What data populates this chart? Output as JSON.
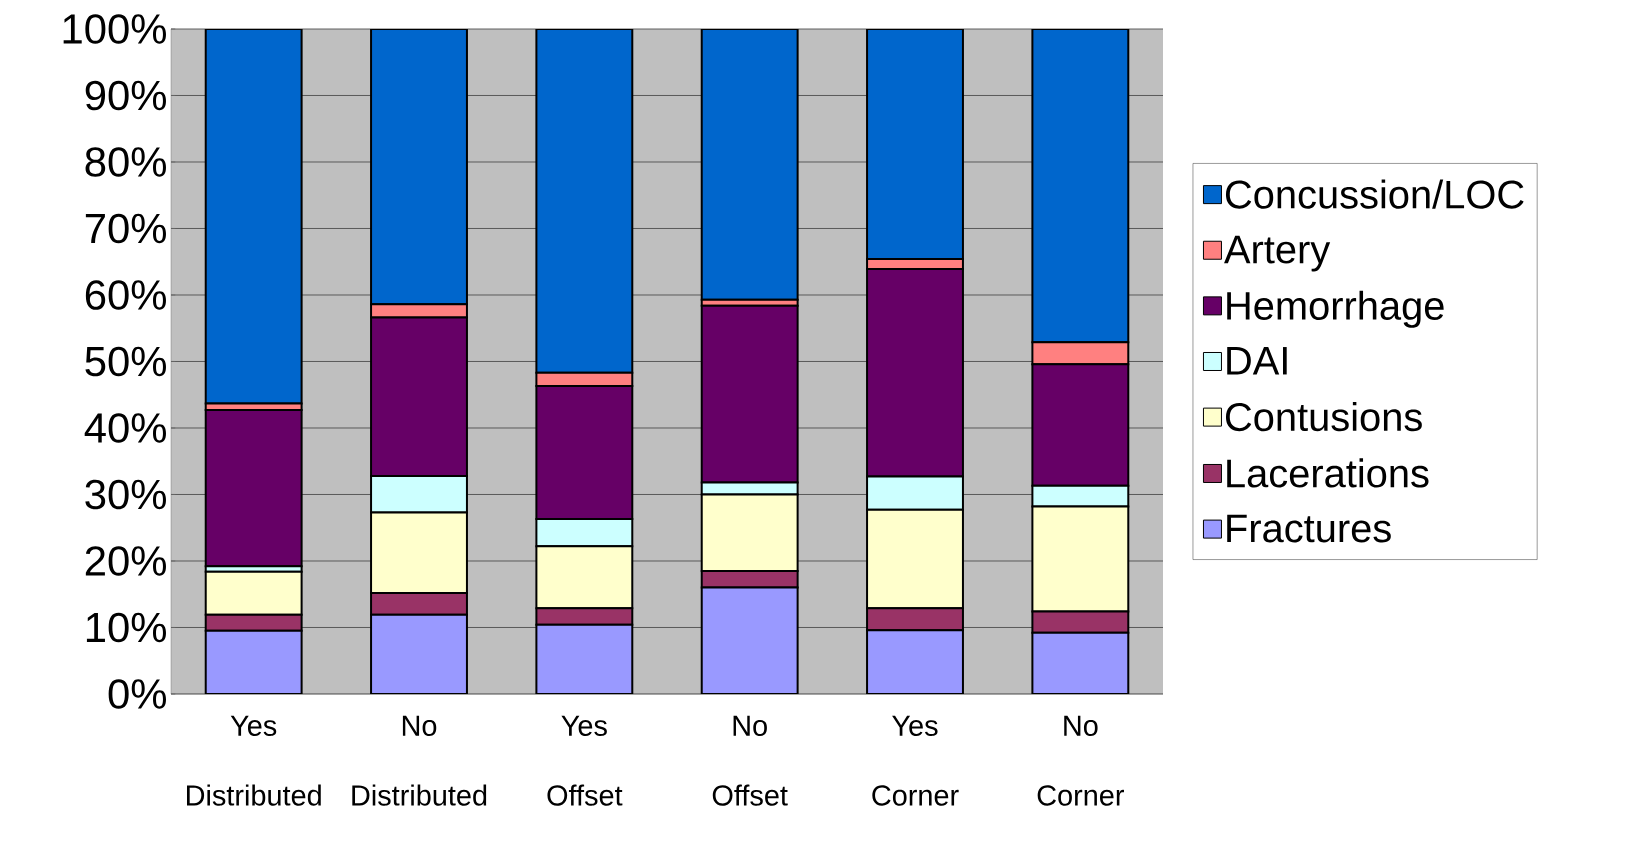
{
  "chart_data": {
    "type": "bar",
    "stacked": true,
    "categories": [
      "Yes Distributed",
      "No Distributed",
      "Yes Offset",
      "No Offset",
      "Yes Corner",
      "No Corner"
    ],
    "series": [
      {
        "name": "Fractures",
        "color": "#9999ff",
        "values": [
          9.5,
          11.9,
          10.4,
          16.0,
          9.6,
          9.2
        ]
      },
      {
        "name": "Lacerations",
        "color": "#993366",
        "values": [
          2.4,
          3.3,
          2.5,
          2.5,
          3.3,
          3.2
        ]
      },
      {
        "name": "Contusions",
        "color": "#ffffcc",
        "values": [
          6.5,
          12.1,
          9.3,
          11.5,
          14.8,
          15.8
        ]
      },
      {
        "name": "DAI",
        "color": "#ccffff",
        "values": [
          0.8,
          5.5,
          4.1,
          1.8,
          5.0,
          3.1
        ]
      },
      {
        "name": "Hemorrhage",
        "color": "#660066",
        "values": [
          23.5,
          23.8,
          20.0,
          26.6,
          31.2,
          18.3
        ]
      },
      {
        "name": "Artery",
        "color": "#ff8080",
        "values": [
          1.0,
          2.0,
          2.0,
          0.9,
          1.5,
          3.3
        ]
      },
      {
        "name": "Concussion/LOC",
        "color": "#0066cc",
        "values": [
          56.3,
          41.4,
          51.7,
          40.7,
          34.6,
          47.1
        ]
      }
    ],
    "ylim": [
      0,
      100
    ],
    "yticks": [
      {
        "value": 0,
        "label": "0%"
      },
      {
        "value": 10,
        "label": "10%"
      },
      {
        "value": 20,
        "label": "20%"
      },
      {
        "value": 30,
        "label": "30%"
      },
      {
        "value": 40,
        "label": "40%"
      },
      {
        "value": 50,
        "label": "50%"
      },
      {
        "value": 60,
        "label": "60%"
      },
      {
        "value": 70,
        "label": "70%"
      },
      {
        "value": 80,
        "label": "80%"
      },
      {
        "value": 90,
        "label": "90%"
      },
      {
        "value": 100,
        "label": "100%"
      }
    ],
    "grid": "y",
    "legend": "right"
  }
}
